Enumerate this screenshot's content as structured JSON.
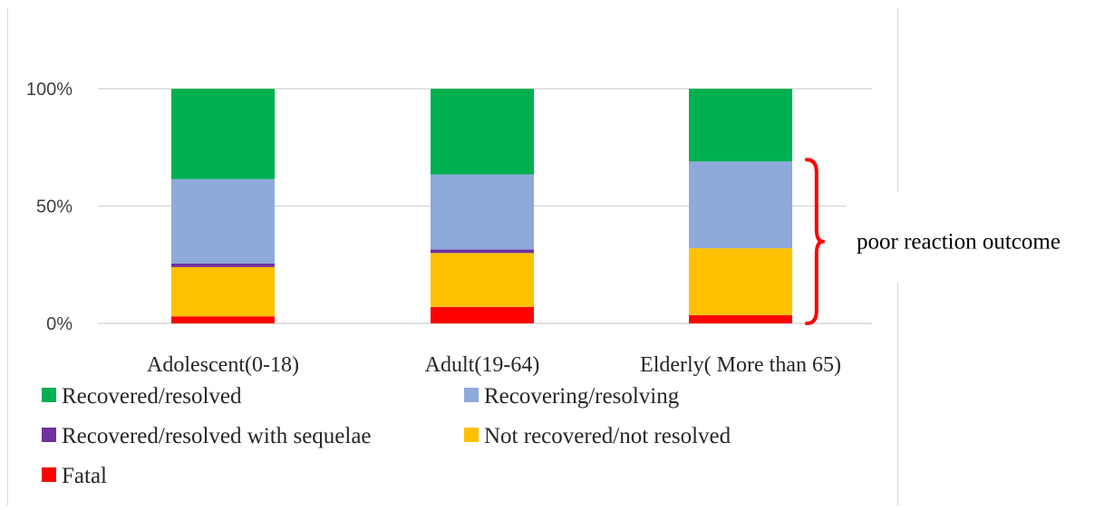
{
  "chart_data": {
    "type": "bar",
    "stacked": true,
    "percent": true,
    "categories": [
      "Adolescent(0-18)",
      "Adult(19-64)",
      "Elderly( More than 65)"
    ],
    "series": [
      {
        "name": "Fatal",
        "color": "#ff0000",
        "values": [
          3,
          7,
          3.5
        ]
      },
      {
        "name": "Not recovered/not resolved",
        "color": "#ffc000",
        "values": [
          21,
          23,
          28.5
        ]
      },
      {
        "name": "Recovered/resolved with sequelae",
        "color": "#7030a0",
        "values": [
          1.5,
          1.5,
          0
        ]
      },
      {
        "name": "Recovering/resolving",
        "color": "#8eaadb",
        "values": [
          36,
          32,
          37
        ]
      },
      {
        "name": "Recovered/resolved",
        "color": "#00b050",
        "values": [
          38.5,
          36.5,
          31
        ]
      }
    ],
    "legend_order": [
      "Recovered/resolved",
      "Recovering/resolving",
      "Recovered/resolved with sequelae",
      "Not recovered/not resolved",
      "Fatal"
    ],
    "yticks": [
      "0%",
      "50%",
      "100%"
    ],
    "ylim": [
      0,
      100
    ],
    "grid": true,
    "legend_position": "bottom",
    "annotation": {
      "text": "poor reaction outcome",
      "bracket": "right brace over Elderly bar, 0% to top of Recovering/resolving",
      "color": "#ff0000"
    }
  }
}
